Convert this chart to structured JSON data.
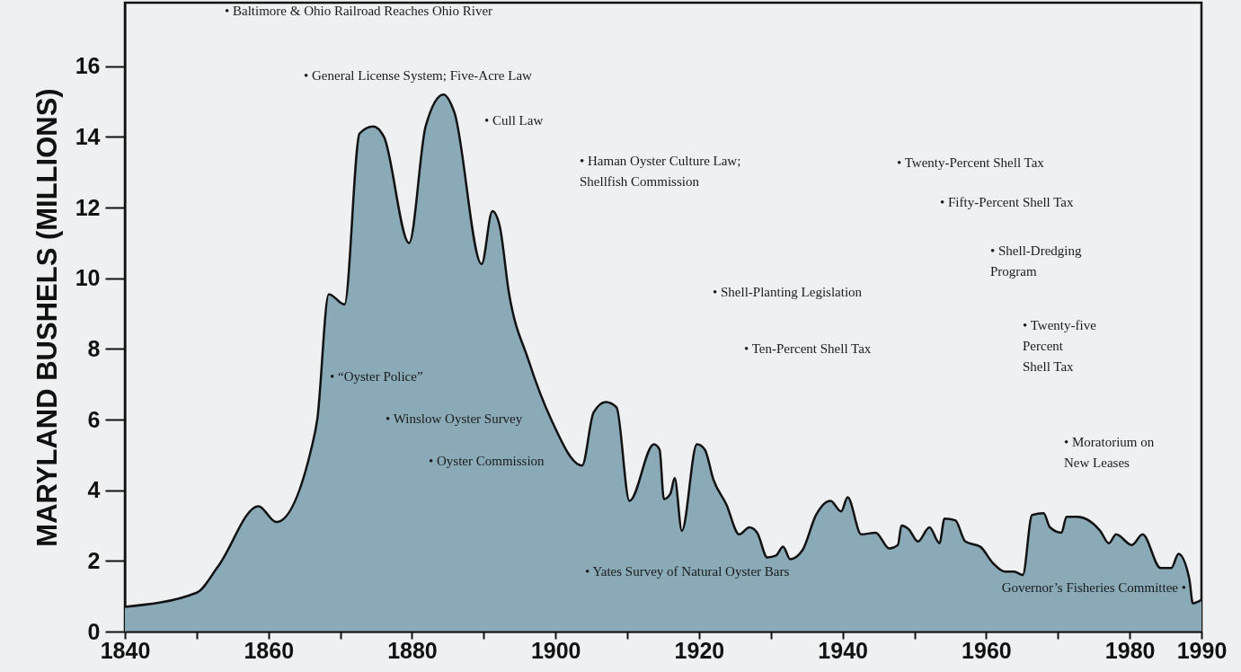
{
  "chart_data": {
    "type": "area",
    "ylabel": "MARYLAND BUSHELS (MILLIONS)",
    "xlim": [
      1840,
      1990
    ],
    "ylim": [
      0,
      17.8
    ],
    "xticks": [
      1840,
      {
        "value": 1850,
        "label": null
      },
      1860,
      {
        "value": 1870,
        "label": null
      },
      1880,
      {
        "value": 1890,
        "label": null
      },
      1900,
      {
        "value": 1910,
        "label": null
      },
      1920,
      {
        "value": 1930,
        "label": null
      },
      1940,
      {
        "value": 1950,
        "label": null
      },
      1960,
      {
        "value": 1970,
        "label": null
      },
      1980,
      1990
    ],
    "yticks": [
      0,
      2,
      4,
      6,
      8,
      10,
      12,
      14,
      16
    ],
    "grid": false,
    "series": [
      {
        "color": "#8aaab8",
        "x": [
          1840,
          1850,
          1853,
          1858.6,
          1861.1,
          1866,
          1866.8,
          1868.4,
          1870.6,
          1872.7,
          1874.6,
          1876.1,
          1879.6,
          1881.9,
          1884.4,
          1885.9,
          1889.7,
          1891.2,
          1892.2,
          1893.5,
          1896.2,
          1899.4,
          1903.7,
          1905.3,
          1907,
          1908.5,
          1910.3,
          1913.7,
          1914.5,
          1915.1,
          1916,
          1916.6,
          1917.6,
          1919.7,
          1920.8,
          1922,
          1923.8,
          1925.6,
          1927,
          1928.1,
          1929.5,
          1930.7,
          1931.7,
          1932.7,
          1934.4,
          1936.3,
          1938.3,
          1939.8,
          1940.7,
          1942.6,
          1944.6,
          1946.5,
          1947.7,
          1948.2,
          1949.2,
          1950.5,
          1952.1,
          1953.5,
          1954.2,
          1955.7,
          1957.1,
          1959.2,
          1960.9,
          1962.6,
          1963.9,
          1965.1,
          1966.4,
          1968,
          1968.9,
          1970.5,
          1971.2,
          1972.7,
          1975.9,
          1977.1,
          1978.1,
          1980.3,
          1981.8,
          1984.3,
          1985.8,
          1986.8,
          1988.3,
          1988.8,
          1990
        ],
        "values": [
          0.7,
          1.1,
          1.85,
          3.55,
          3.1,
          5.2,
          6.0,
          9.55,
          9.26,
          14.1,
          14.3,
          14.0,
          11.0,
          14.3,
          15.2,
          14.7,
          10.4,
          11.9,
          11.5,
          9.6,
          7.7,
          6.0,
          4.7,
          6.2,
          6.5,
          6.35,
          3.7,
          5.3,
          5.15,
          3.75,
          3.9,
          4.35,
          2.85,
          5.3,
          5.15,
          4.3,
          3.6,
          2.75,
          2.95,
          2.8,
          2.1,
          2.15,
          2.4,
          2.05,
          2.3,
          3.3,
          3.7,
          3.4,
          3.8,
          2.75,
          2.8,
          2.35,
          2.45,
          3.0,
          2.9,
          2.55,
          2.95,
          2.5,
          3.2,
          3.15,
          2.55,
          2.4,
          1.95,
          1.7,
          1.7,
          1.6,
          3.3,
          3.35,
          2.95,
          2.8,
          3.25,
          3.25,
          2.85,
          2.5,
          2.75,
          2.45,
          2.75,
          1.8,
          1.8,
          2.2,
          1.5,
          0.8,
          0.9
        ]
      }
    ],
    "annotations": [
      "• Baltimore & Ohio Railroad Reaches Ohio River",
      "• General License System; Five-Acre Law",
      "• Cull Law",
      "• Haman Oyster Culture Law;\nShellfish Commission",
      "• Twenty-Percent Shell Tax",
      "• Fifty-Percent Shell Tax",
      "• Shell-Dredging\nProgram",
      "• Shell-Planting Legislation",
      "• Ten-Percent Shell Tax",
      "• Twenty-five\nPercent\nShell Tax",
      "• “Oyster Police”",
      "• Winslow Oyster Survey",
      "• Oyster Commission",
      "• Moratorium on\nNew Leases",
      "• Yates Survey of Natural Oyster Bars",
      "Governor’s Fisheries Committee •"
    ]
  }
}
